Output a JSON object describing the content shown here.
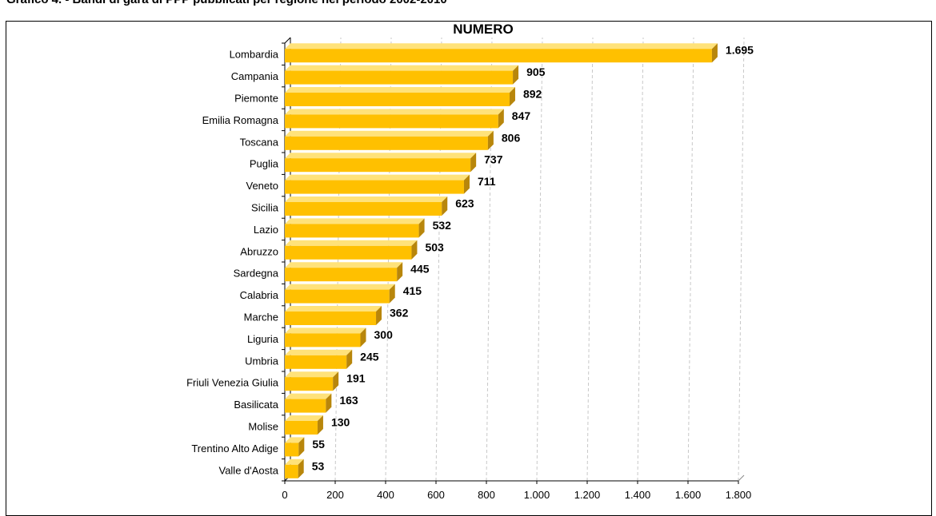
{
  "caption": "Grafico 4. - Bandi di gara di PPP pubblicati per regione nel periodo 2002-2010",
  "colors": {
    "bar_front": "#ffc000",
    "bar_side": "#b8860b",
    "bar_top": "#ffe27a",
    "grid": "#c8c8c8"
  },
  "chart_data": {
    "type": "bar",
    "orientation": "horizontal",
    "title": "NUMERO",
    "categories": [
      "Lombardia",
      "Campania",
      "Piemonte",
      "Emilia Romagna",
      "Toscana",
      "Puglia",
      "Veneto",
      "Sicilia",
      "Lazio",
      "Abruzzo",
      "Sardegna",
      "Calabria",
      "Marche",
      "Liguria",
      "Umbria",
      "Friuli Venezia Giulia",
      "Basilicata",
      "Molise",
      "Trentino Alto Adige",
      "Valle d'Aosta"
    ],
    "values": [
      1695,
      905,
      892,
      847,
      806,
      737,
      711,
      623,
      532,
      503,
      445,
      415,
      362,
      300,
      245,
      191,
      163,
      130,
      55,
      53
    ],
    "value_labels": [
      "1.695",
      "905",
      "892",
      "847",
      "806",
      "737",
      "711",
      "623",
      "532",
      "503",
      "445",
      "415",
      "362",
      "300",
      "245",
      "191",
      "163",
      "130",
      "55",
      "53"
    ],
    "xlim": [
      0,
      1800
    ],
    "x_ticks": [
      0,
      200,
      400,
      600,
      800,
      1000,
      1200,
      1400,
      1600,
      1800
    ],
    "x_tick_labels": [
      "0",
      "200",
      "400",
      "600",
      "800",
      "1.000",
      "1.200",
      "1.400",
      "1.600",
      "1.800"
    ],
    "grid": true,
    "gridline_style": "dashed vertical"
  }
}
